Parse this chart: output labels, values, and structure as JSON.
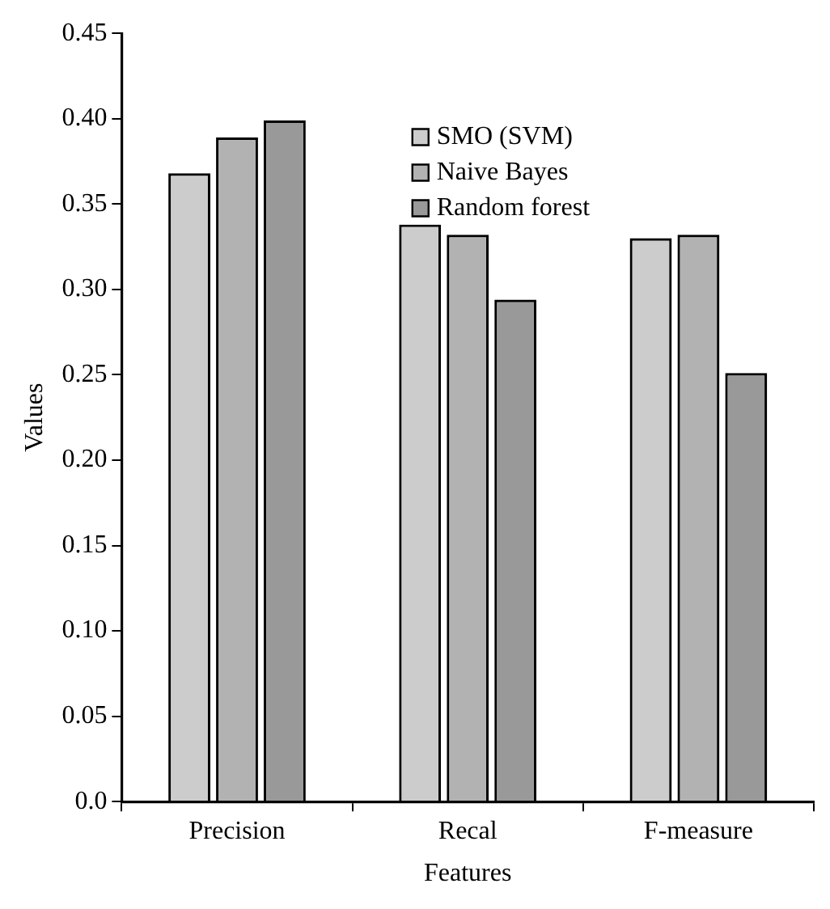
{
  "chart_data": {
    "type": "bar",
    "xlabel": "Features",
    "ylabel": "Values",
    "categories": [
      "Precision",
      "Recal",
      "F-measure"
    ],
    "series": [
      {
        "name": "SMO (SVM)",
        "color": "#cccccc",
        "values": [
          0.368,
          0.338,
          0.33
        ]
      },
      {
        "name": "Naive Bayes",
        "color": "#b2b2b2",
        "values": [
          0.389,
          0.332,
          0.332
        ]
      },
      {
        "name": "Random forest",
        "color": "#999999",
        "values": [
          0.399,
          0.294,
          0.251
        ]
      }
    ],
    "ylim": [
      0,
      0.45
    ],
    "yticks": [
      {
        "value": 0,
        "label": "0.0"
      },
      0.05,
      {
        "value": 0.1,
        "label": "0.10"
      },
      0.15,
      {
        "value": 0.2,
        "label": "0.20"
      },
      0.25,
      {
        "value": 0.3,
        "label": "0.30"
      },
      0.35,
      {
        "value": 0.4,
        "label": "0.40"
      },
      0.45
    ],
    "grid": false,
    "legend": "top"
  }
}
